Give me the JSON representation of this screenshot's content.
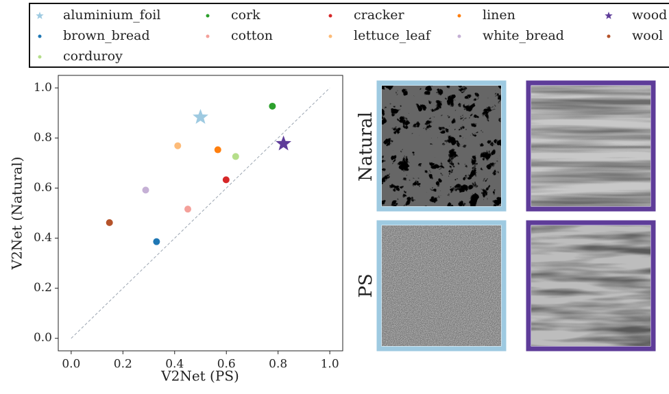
{
  "chart_data": {
    "type": "scatter",
    "xlabel": "V2Net (PS)",
    "ylabel": "V2Net (Natural)",
    "xlim": [
      -0.05,
      1.05
    ],
    "ylim": [
      -0.05,
      1.05
    ],
    "xticks": [
      {
        "value": 0,
        "label": "0.0"
      },
      0.2,
      0.4,
      0.6,
      0.8,
      {
        "value": 1,
        "label": "1.0"
      }
    ],
    "yticks": [
      {
        "value": 0,
        "label": "0.0"
      },
      0.2,
      0.4,
      0.6,
      0.8,
      {
        "value": 1,
        "label": "1.0"
      }
    ],
    "identity_line": true,
    "legend": "top",
    "series": [
      {
        "name": "aluminium_foil",
        "color": "#9ecae1",
        "marker": "star",
        "x": [
          0.5
        ],
        "values": [
          0.883
        ]
      },
      {
        "name": "brown_bread",
        "color": "#1f77b4",
        "marker": "circle",
        "x": [
          0.33
        ],
        "values": [
          0.386
        ]
      },
      {
        "name": "corduroy",
        "color": "#b5de8a",
        "marker": "circle",
        "x": [
          0.636
        ],
        "values": [
          0.726
        ]
      },
      {
        "name": "cork",
        "color": "#2ca02c",
        "marker": "circle",
        "x": [
          0.778
        ],
        "values": [
          0.927
        ]
      },
      {
        "name": "cotton",
        "color": "#f4a09a",
        "marker": "circle",
        "x": [
          0.451
        ],
        "values": [
          0.516
        ]
      },
      {
        "name": "cracker",
        "color": "#d62728",
        "marker": "circle",
        "x": [
          0.599
        ],
        "values": [
          0.633
        ]
      },
      {
        "name": "lettuce_leaf",
        "color": "#fdbb78",
        "marker": "circle",
        "x": [
          0.412
        ],
        "values": [
          0.769
        ]
      },
      {
        "name": "linen",
        "color": "#ff7f0e",
        "marker": "circle",
        "x": [
          0.567
        ],
        "values": [
          0.753
        ]
      },
      {
        "name": "white_bread",
        "color": "#c5b0d5",
        "marker": "circle",
        "x": [
          0.288
        ],
        "values": [
          0.592
        ]
      },
      {
        "name": "wood",
        "color": "#5e3c99",
        "marker": "star",
        "x": [
          0.821
        ],
        "values": [
          0.777
        ]
      },
      {
        "name": "wool",
        "color": "#b5532a",
        "marker": "circle",
        "x": [
          0.148
        ],
        "values": [
          0.462
        ]
      }
    ]
  },
  "image_grid": {
    "row_labels": [
      "Natural",
      "PS"
    ]
  }
}
